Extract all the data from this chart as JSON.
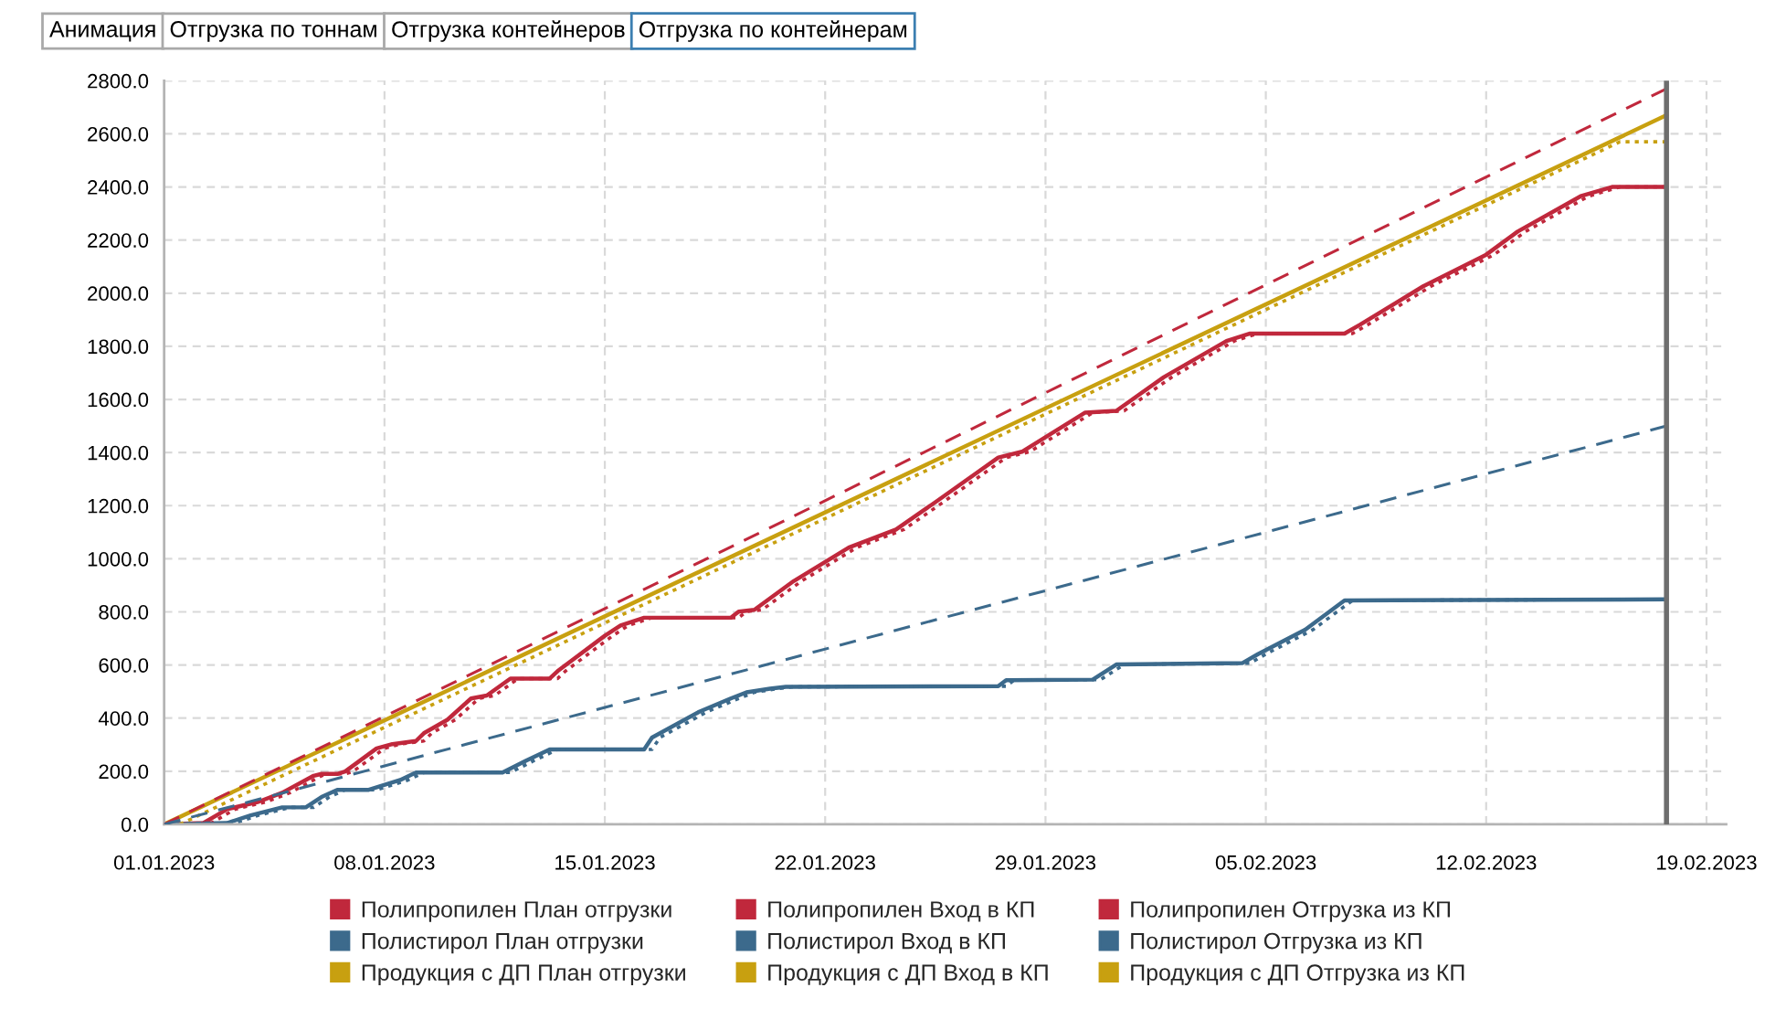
{
  "chart_data": {
    "type": "line",
    "title": "Отгрузка по контейнерам",
    "annotations": [
      "Анимация",
      "Отгрузка по тоннам",
      "Отгрузка контейнеров"
    ],
    "xlim": [
      "2023-01-01T00:00",
      "2023-02-19T15:00"
    ],
    "xticks": [
      {
        "value": "2023-01-01",
        "label": "01.01.2023"
      },
      {
        "value": "2023-01-08",
        "label": "08.01.2023"
      },
      {
        "value": "2023-01-15",
        "label": "15.01.2023"
      },
      {
        "value": "2023-01-22",
        "label": "22.01.2023"
      },
      {
        "value": "2023-01-29",
        "label": "29.01.2023"
      },
      {
        "value": "2023-02-05",
        "label": "05.02.2023"
      },
      {
        "value": "2023-02-12",
        "label": "12.02.2023"
      },
      {
        "value": "2023-02-19",
        "label": "19.02.2023"
      }
    ],
    "ylim": [
      0,
      2800
    ],
    "yticks": [
      {
        "value": 0,
        "label": "0.0"
      },
      {
        "value": 200,
        "label": "200.0"
      },
      {
        "value": 400,
        "label": "400.0"
      },
      {
        "value": 600,
        "label": "600.0"
      },
      {
        "value": 800,
        "label": "800.0"
      },
      {
        "value": 1000,
        "label": "1000.0"
      },
      {
        "value": 1200,
        "label": "1200.0"
      },
      {
        "value": 1400,
        "label": "1400.0"
      },
      {
        "value": 1600,
        "label": "1600.0"
      },
      {
        "value": 1800,
        "label": "1800.0"
      },
      {
        "value": 2000,
        "label": "2000.0"
      },
      {
        "value": 2200,
        "label": "2200.0"
      },
      {
        "value": 2400,
        "label": "2400.0"
      },
      {
        "value": 2600,
        "label": "2600.0"
      },
      {
        "value": 2800,
        "label": "2800.0"
      }
    ],
    "grid": true,
    "legend": "bottom",
    "ref_lines": [
      {
        "axis": "x",
        "value": "2023-02-17T17:30",
        "color": "#6e6e6e"
      }
    ],
    "series": [
      {
        "name": "Полипропилен План отгрузки",
        "color": "#c0283c",
        "line_style": "dashed",
        "x": [
          "2023-01-01T00:00",
          "2023-02-17T17:30"
        ],
        "values": [
          0,
          2770
        ]
      },
      {
        "name": "Полипропилен Вход в КП",
        "color": "#c0283c",
        "line_style": "solid",
        "x": [
          "2023-01-01T00:00",
          "2023-01-02T06:00",
          "2023-01-03T00:00",
          "2023-01-04T00:00",
          "2023-01-04T18:00",
          "2023-01-05T18:00",
          "2023-01-06T00:00",
          "2023-01-06T12:00",
          "2023-01-06T18:00",
          "2023-01-07T18:00",
          "2023-01-08T06:00",
          "2023-01-09T00:00",
          "2023-01-09T06:00",
          "2023-01-10T00:00",
          "2023-01-10T18:00",
          "2023-01-11T06:00",
          "2023-01-12T00:00",
          "2023-01-13T06:00",
          "2023-01-13T12:00",
          "2023-01-15T00:00",
          "2023-01-15T12:00",
          "2023-01-16T06:00",
          "2023-01-19T00:00",
          "2023-01-19T06:00",
          "2023-01-19T18:00",
          "2023-01-21T00:00",
          "2023-01-22T18:00",
          "2023-01-24T06:00",
          "2023-01-25T12:00",
          "2023-01-27T12:00",
          "2023-01-28T06:00",
          "2023-01-30T06:00",
          "2023-01-31T06:00",
          "2023-02-01T18:00",
          "2023-02-03T18:00",
          "2023-02-04T12:00",
          "2023-02-07T12:00",
          "2023-02-08T00:00",
          "2023-02-10T00:00",
          "2023-02-12T00:00",
          "2023-02-13T00:00",
          "2023-02-15T00:00",
          "2023-02-16T00:00",
          "2023-02-17T17:30"
        ],
        "values": [
          0,
          5,
          57,
          85,
          119,
          183,
          190,
          190,
          199,
          286,
          302,
          314,
          343,
          394,
          474,
          485,
          549,
          549,
          577,
          710,
          749,
          778,
          778,
          801,
          808,
          916,
          1042,
          1110,
          1213,
          1381,
          1403,
          1550,
          1557,
          1683,
          1820,
          1848,
          1848,
          1882,
          2026,
          2145,
          2232,
          2365,
          2400,
          2400
        ]
      },
      {
        "name": "Полипропилен Отгрузка из КП",
        "color": "#c0283c",
        "line_style": "dotted",
        "x": [
          "2023-01-01T00:00",
          "2023-01-02T12:00",
          "2023-01-03T06:00",
          "2023-01-04T06:00",
          "2023-01-05T00:00",
          "2023-01-06T00:00",
          "2023-01-06T06:00",
          "2023-01-06T18:00",
          "2023-01-07T00:00",
          "2023-01-08T00:00",
          "2023-01-08T12:00",
          "2023-01-09T06:00",
          "2023-01-09T12:00",
          "2023-01-10T06:00",
          "2023-01-11T00:00",
          "2023-01-11T12:00",
          "2023-01-12T06:00",
          "2023-01-13T12:00",
          "2023-01-13T18:00",
          "2023-01-15T06:00",
          "2023-01-15T18:00",
          "2023-01-16T12:00",
          "2023-01-19T06:00",
          "2023-01-19T12:00",
          "2023-01-20T00:00",
          "2023-01-21T06:00",
          "2023-01-23T00:00",
          "2023-01-24T12:00",
          "2023-01-25T18:00",
          "2023-01-27T18:00",
          "2023-01-28T12:00",
          "2023-01-30T12:00",
          "2023-01-31T12:00",
          "2023-02-02T00:00",
          "2023-02-04T00:00",
          "2023-02-04T18:00",
          "2023-02-07T18:00",
          "2023-02-08T06:00",
          "2023-02-10T06:00",
          "2023-02-12T06:00",
          "2023-02-13T06:00",
          "2023-02-15T06:00",
          "2023-02-16T06:00",
          "2023-02-17T17:30"
        ],
        "values": [
          0,
          5,
          57,
          85,
          119,
          183,
          190,
          190,
          199,
          286,
          302,
          314,
          343,
          394,
          474,
          485,
          549,
          549,
          577,
          710,
          749,
          778,
          778,
          801,
          808,
          916,
          1042,
          1110,
          1213,
          1381,
          1403,
          1550,
          1557,
          1683,
          1820,
          1848,
          1848,
          1882,
          2026,
          2145,
          2232,
          2365,
          2400,
          2400
        ]
      },
      {
        "name": "Полистирол План отгрузки",
        "color": "#3c6a8c",
        "line_style": "dashed",
        "x": [
          "2023-01-01T00:00",
          "2023-02-17T17:30"
        ],
        "values": [
          0,
          1500
        ]
      },
      {
        "name": "Полистирол Вход в КП",
        "color": "#3c6a8c",
        "line_style": "solid",
        "x": [
          "2023-01-01T00:00",
          "2023-01-03T00:00",
          "2023-01-03T18:00",
          "2023-01-04T18:00",
          "2023-01-05T12:00",
          "2023-01-06T00:00",
          "2023-01-06T12:00",
          "2023-01-07T12:00",
          "2023-01-08T12:00",
          "2023-01-09T00:00",
          "2023-01-11T18:00",
          "2023-01-12T12:00",
          "2023-01-13T06:00",
          "2023-01-16T06:00",
          "2023-01-16T12:00",
          "2023-01-18T00:00",
          "2023-01-19T00:00",
          "2023-01-19T12:00",
          "2023-01-20T06:00",
          "2023-01-20T18:00",
          "2023-01-27T12:00",
          "2023-01-27T18:00",
          "2023-01-30T12:00",
          "2023-01-31T06:00",
          "2023-02-04T06:00",
          "2023-02-04T18:00",
          "2023-02-06T06:00",
          "2023-02-07T12:00",
          "2023-02-17T17:30"
        ],
        "values": [
          0,
          5,
          34,
          64,
          64,
          103,
          130,
          130,
          167,
          195,
          195,
          240,
          282,
          282,
          327,
          424,
          474,
          497,
          511,
          518,
          520,
          543,
          545,
          602,
          607,
          641,
          733,
          843,
          847
        ]
      },
      {
        "name": "Полистирол Отгрузка из КП",
        "color": "#3c6a8c",
        "line_style": "dotted",
        "x": [
          "2023-01-01T00:00",
          "2023-01-03T06:00",
          "2023-01-04T00:00",
          "2023-01-05T00:00",
          "2023-01-05T18:00",
          "2023-01-06T06:00",
          "2023-01-06T18:00",
          "2023-01-07T18:00",
          "2023-01-08T18:00",
          "2023-01-09T06:00",
          "2023-01-12T00:00",
          "2023-01-12T18:00",
          "2023-01-13T12:00",
          "2023-01-16T12:00",
          "2023-01-16T18:00",
          "2023-01-18T06:00",
          "2023-01-19T06:00",
          "2023-01-19T18:00",
          "2023-01-20T12:00",
          "2023-01-21T00:00",
          "2023-01-27T18:00",
          "2023-01-28T00:00",
          "2023-01-30T18:00",
          "2023-01-31T12:00",
          "2023-02-04T12:00",
          "2023-02-05T00:00",
          "2023-02-06T12:00",
          "2023-02-07T18:00",
          "2023-02-17T17:30"
        ],
        "values": [
          0,
          5,
          34,
          64,
          64,
          103,
          130,
          130,
          167,
          195,
          195,
          240,
          282,
          282,
          327,
          424,
          474,
          497,
          511,
          518,
          520,
          543,
          545,
          602,
          607,
          641,
          733,
          843,
          847
        ]
      },
      {
        "name": "Продукция с ДП План отгрузки",
        "color": "#c8a010",
        "line_style": "dashed"
      },
      {
        "name": "Продукция с ДП Вход в КП",
        "color": "#c8a010",
        "line_style": "solid",
        "x": [
          "2023-01-01T00:00",
          "2023-02-17T17:30"
        ],
        "values": [
          0,
          2670
        ]
      },
      {
        "name": "Продукция с ДП Отгрузка из КП",
        "color": "#c8a010",
        "line_style": "dotted",
        "x": [
          "2023-01-01T12:00",
          "2023-02-16T06:00",
          "2023-02-17T17:30"
        ],
        "values": [
          0,
          2570,
          2570
        ]
      }
    ]
  }
}
